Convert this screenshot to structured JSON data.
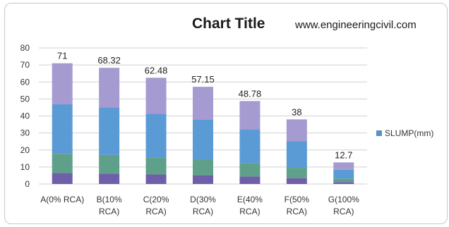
{
  "chart_data": {
    "type": "bar",
    "title": "Chart Title",
    "categories": [
      [
        "A(0% RCA)"
      ],
      [
        "B(10%",
        "RCA)"
      ],
      [
        "C(20%",
        "RCA)"
      ],
      [
        "D(30%",
        "RCA)"
      ],
      [
        "E(40%",
        "RCA)"
      ],
      [
        "F(50%",
        "RCA)"
      ],
      [
        "G(100%",
        "RCA)"
      ]
    ],
    "series": [
      {
        "name": "SLUMP(mm)",
        "values": [
          71,
          68.32,
          62.48,
          57.15,
          48.78,
          38,
          12.7
        ],
        "data_labels": [
          "71",
          "68.32",
          "62.48",
          "57.15",
          "48.78",
          "38",
          "12.7"
        ]
      }
    ],
    "yticks": [
      0,
      10,
      20,
      30,
      40,
      50,
      60,
      70,
      80
    ],
    "ylim": [
      0,
      80
    ],
    "grid": true,
    "legend": "right",
    "colors": {
      "top": "#a59bd1",
      "upper": "#5b9bd5",
      "lower": "#5fa08a",
      "bottom": "#6f5fa8",
      "legend_swatch": "#5b8fc9",
      "grid": "#d0d0d0"
    }
  },
  "watermark": "www.engineeringcivil.com"
}
